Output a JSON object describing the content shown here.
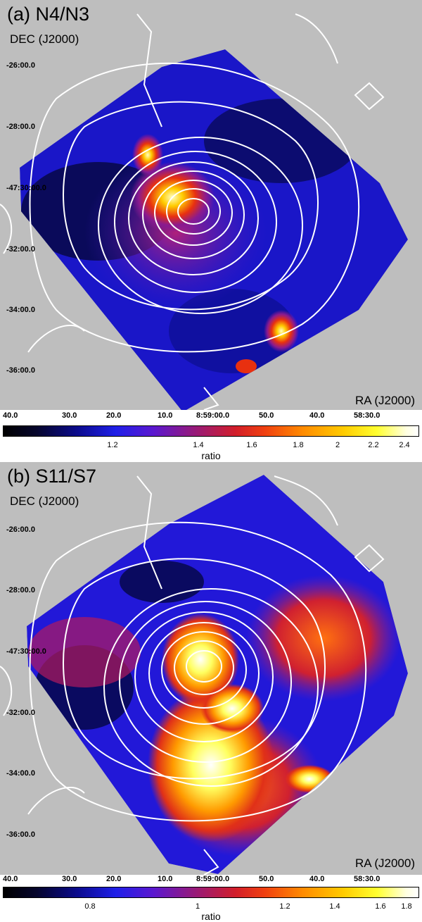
{
  "panels": [
    {
      "title": "(a) N4/N3",
      "dec_label": "DEC (J2000)",
      "ra_label": "RA (J2000)",
      "dec_ticks": [
        "-26:00.0",
        "-28:00.0",
        "-47:30:00.0",
        "-32:00.0",
        "-34:00.0",
        "-36:00.0"
      ],
      "ra_ticks": [
        "40.0",
        "30.0",
        "20.0",
        "10.0",
        "8:59:00.0",
        "50.0",
        "40.0",
        "58:30.0"
      ],
      "colorbar": {
        "ticks": [
          "1.2",
          "1.4",
          "1.6",
          "1.8",
          "2",
          "2.2",
          "2.4"
        ],
        "label": "ratio"
      }
    },
    {
      "title": "(b) S11/S7",
      "dec_label": "DEC (J2000)",
      "ra_label": "RA (J2000)",
      "dec_ticks": [
        "-26:00.0",
        "-28:00.0",
        "-47:30:00.0",
        "-32:00.0",
        "-34:00.0",
        "-36:00.0"
      ],
      "ra_ticks": [
        "40.0",
        "30.0",
        "20.0",
        "10.0",
        "8:59:00.0",
        "50.0",
        "40.0",
        "58:30.0"
      ],
      "colorbar": {
        "ticks": [
          "0.8",
          "1",
          "1.2",
          "1.4",
          "1.6",
          "1.8"
        ],
        "label": "ratio"
      }
    }
  ],
  "colors": {
    "background": "#bebebe",
    "contour": "#ffffff",
    "colormap": [
      "#000000",
      "#0b0b8f",
      "#1f1fe8",
      "#961a7a",
      "#d21e2a",
      "#ff8a00",
      "#ffff30",
      "#ffffff"
    ]
  }
}
